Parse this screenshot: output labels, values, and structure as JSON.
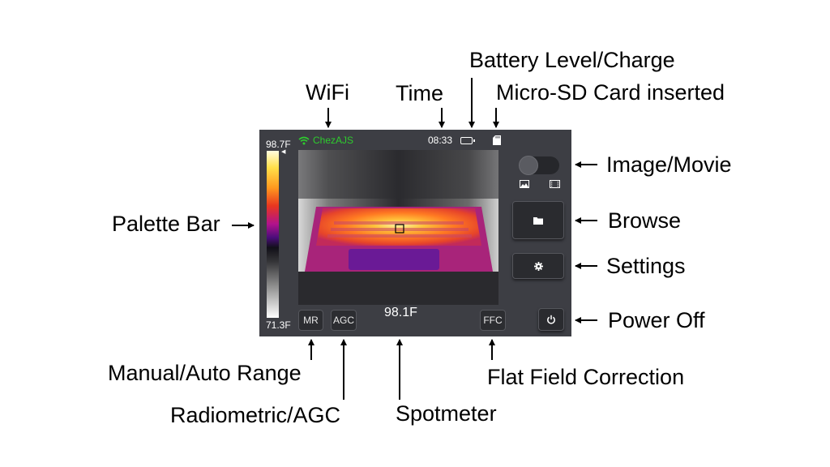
{
  "callouts": {
    "battery": "Battery Level/Charge",
    "wifi": "WiFi",
    "time": "Time",
    "sd_card": "Micro-SD Card inserted",
    "image_movie": "Image/Movie",
    "palette_bar": "Palette Bar",
    "browse": "Browse",
    "settings": "Settings",
    "power_off": "Power Off",
    "manual_auto_range": "Manual/Auto Range",
    "flat_field": "Flat Field Correction",
    "radiometric_agc": "Radiometric/AGC",
    "spotmeter": "Spotmeter"
  },
  "device": {
    "palette": {
      "max": "98.7F",
      "min": "71.3F"
    },
    "status": {
      "wifi_name": "ChezAJS",
      "time": "08:33"
    },
    "spot_temperature": "98.1F",
    "buttons": {
      "mr": "MR",
      "agc": "AGC",
      "ffc": "FFC"
    },
    "icons": [
      "wifi-icon",
      "battery-icon",
      "sd-card-icon",
      "image-icon",
      "movie-icon",
      "folder-icon",
      "gear-icon",
      "power-icon"
    ],
    "colors": {
      "wifi": "#2ecc2e",
      "panel": "#3d3e44",
      "button": "#2c2d31"
    }
  }
}
